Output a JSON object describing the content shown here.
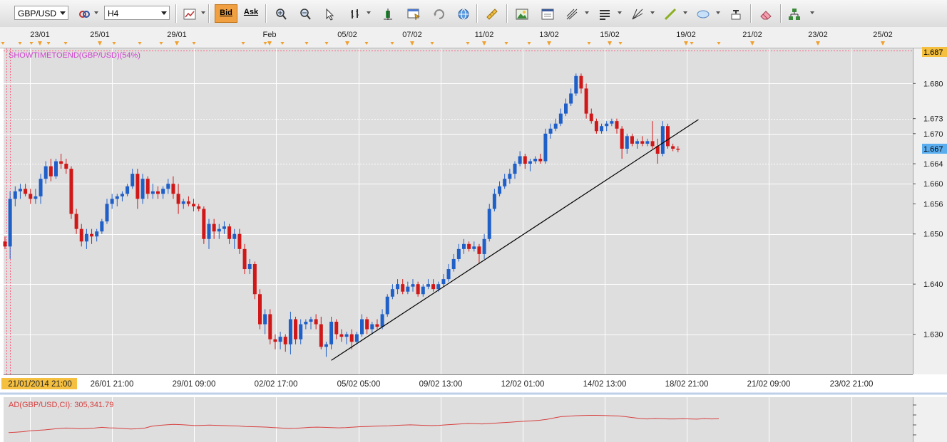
{
  "toolbar": {
    "symbol": "GBP/USD",
    "timeframe": "H4",
    "bid_label": "Bid",
    "ask_label": "Ask",
    "icons": [
      "symbol-link-icon",
      "line-chart-icon",
      "zoom-in-icon",
      "zoom-out-icon",
      "cursor-icon",
      "bar-chart-type-icon",
      "candle-settings-icon",
      "template-icon",
      "refresh-icon",
      "globe-icon",
      "ruler-icon",
      "picture-icon",
      "window-icon",
      "fork-icon",
      "lines-icon",
      "fan-icon",
      "trendline-icon",
      "ellipse-icon",
      "text-abc-icon",
      "eraser-icon",
      "network-icon"
    ]
  },
  "chart_data": {
    "type": "candlestick",
    "symbol": "GBP/USD",
    "timeframe": "H4",
    "indicator_label": "SHOWTIMETOEND(GBP/USD)(54%)",
    "price_axis": {
      "range": [
        1.622,
        1.687
      ],
      "ticks": [
        "1.680",
        "1.670",
        "1.660",
        "1.650",
        "1.640",
        "1.630"
      ],
      "current_price": "1.667",
      "top_price": "1.687",
      "level_labels": [
        "1.673",
        "1.664",
        "1.656"
      ],
      "levels": [
        1.673,
        1.664,
        1.656
      ]
    },
    "top_dates": [
      "23/01",
      "25/01",
      "29/01",
      "Feb",
      "05/02",
      "07/02",
      "11/02",
      "13/02",
      "15/02",
      "19/02",
      "21/02",
      "23/02",
      "25/02"
    ],
    "bottom_dates": [
      "21/01/2014 21:00",
      "26/01 21:00",
      "29/01 09:00",
      "02/02 17:00",
      "05/02 05:00",
      "09/02 13:00",
      "12/02 01:00",
      "14/02 13:00",
      "18/02 21:00",
      "21/02 09:00",
      "23/02 21:00"
    ],
    "candles": [
      [
        1.6485,
        1.6495,
        1.647,
        1.6475
      ],
      [
        1.6475,
        1.6585,
        1.645,
        1.657
      ],
      [
        1.657,
        1.6595,
        1.6555,
        1.6585
      ],
      [
        1.6585,
        1.66,
        1.657,
        1.659
      ],
      [
        1.659,
        1.66,
        1.6575,
        1.658
      ],
      [
        1.658,
        1.659,
        1.656,
        1.657
      ],
      [
        1.657,
        1.659,
        1.656,
        1.6575
      ],
      [
        1.6575,
        1.662,
        1.656,
        1.661
      ],
      [
        1.661,
        1.6645,
        1.66,
        1.6635
      ],
      [
        1.6635,
        1.665,
        1.6605,
        1.6615
      ],
      [
        1.6615,
        1.665,
        1.661,
        1.6645
      ],
      [
        1.6645,
        1.666,
        1.663,
        1.664
      ],
      [
        1.664,
        1.665,
        1.662,
        1.663
      ],
      [
        1.663,
        1.6635,
        1.653,
        1.654
      ],
      [
        1.654,
        1.655,
        1.65,
        1.651
      ],
      [
        1.651,
        1.652,
        1.6475,
        1.6485
      ],
      [
        1.6485,
        1.651,
        1.647,
        1.65
      ],
      [
        1.65,
        1.651,
        1.648,
        1.6495
      ],
      [
        1.6495,
        1.651,
        1.6485,
        1.6505
      ],
      [
        1.6505,
        1.653,
        1.65,
        1.6525
      ],
      [
        1.6525,
        1.657,
        1.652,
        1.656
      ],
      [
        1.656,
        1.658,
        1.655,
        1.657
      ],
      [
        1.657,
        1.658,
        1.6555,
        1.6575
      ],
      [
        1.6575,
        1.6585,
        1.6565,
        1.658
      ],
      [
        1.658,
        1.66,
        1.6575,
        1.6595
      ],
      [
        1.6595,
        1.663,
        1.659,
        1.662
      ],
      [
        1.662,
        1.663,
        1.655,
        1.657
      ],
      [
        1.657,
        1.662,
        1.656,
        1.661
      ],
      [
        1.661,
        1.6615,
        1.657,
        1.658
      ],
      [
        1.658,
        1.66,
        1.657,
        1.6585
      ],
      [
        1.6585,
        1.6595,
        1.657,
        1.658
      ],
      [
        1.658,
        1.6595,
        1.657,
        1.659
      ],
      [
        1.659,
        1.661,
        1.658,
        1.66
      ],
      [
        1.66,
        1.6615,
        1.657,
        1.658
      ],
      [
        1.658,
        1.66,
        1.654,
        1.656
      ],
      [
        1.656,
        1.657,
        1.655,
        1.6565
      ],
      [
        1.6565,
        1.6575,
        1.6555,
        1.656
      ],
      [
        1.656,
        1.657,
        1.6545,
        1.6555
      ],
      [
        1.6555,
        1.656,
        1.6545,
        1.655
      ],
      [
        1.655,
        1.6555,
        1.648,
        1.649
      ],
      [
        1.649,
        1.653,
        1.647,
        1.652
      ],
      [
        1.652,
        1.653,
        1.649,
        1.6505
      ],
      [
        1.6505,
        1.652,
        1.649,
        1.651
      ],
      [
        1.651,
        1.6525,
        1.65,
        1.6515
      ],
      [
        1.6515,
        1.652,
        1.648,
        1.649
      ],
      [
        1.649,
        1.651,
        1.647,
        1.65
      ],
      [
        1.65,
        1.651,
        1.646,
        1.647
      ],
      [
        1.647,
        1.648,
        1.642,
        1.643
      ],
      [
        1.643,
        1.645,
        1.642,
        1.644
      ],
      [
        1.644,
        1.6445,
        1.637,
        1.638
      ],
      [
        1.638,
        1.639,
        1.631,
        1.632
      ],
      [
        1.632,
        1.635,
        1.63,
        1.634
      ],
      [
        1.634,
        1.635,
        1.628,
        1.629
      ],
      [
        1.629,
        1.63,
        1.627,
        1.6285
      ],
      [
        1.6285,
        1.6305,
        1.627,
        1.6295
      ],
      [
        1.6295,
        1.63,
        1.6265,
        1.628
      ],
      [
        1.628,
        1.6345,
        1.626,
        1.633
      ],
      [
        1.633,
        1.6335,
        1.628,
        1.629
      ],
      [
        1.629,
        1.633,
        1.628,
        1.632
      ],
      [
        1.632,
        1.633,
        1.631,
        1.6325
      ],
      [
        1.6325,
        1.6335,
        1.631,
        1.633
      ],
      [
        1.633,
        1.634,
        1.631,
        1.632
      ],
      [
        1.632,
        1.6335,
        1.627,
        1.6275
      ],
      [
        1.6275,
        1.6285,
        1.6255,
        1.628
      ],
      [
        1.628,
        1.6335,
        1.627,
        1.6325
      ],
      [
        1.6325,
        1.633,
        1.629,
        1.63
      ],
      [
        1.63,
        1.631,
        1.6285,
        1.6295
      ],
      [
        1.6295,
        1.6305,
        1.628,
        1.63
      ],
      [
        1.63,
        1.631,
        1.627,
        1.6285
      ],
      [
        1.6285,
        1.6305,
        1.628,
        1.63
      ],
      [
        1.63,
        1.634,
        1.6295,
        1.633
      ],
      [
        1.633,
        1.6335,
        1.63,
        1.631
      ],
      [
        1.631,
        1.6325,
        1.63,
        1.632
      ],
      [
        1.632,
        1.633,
        1.631,
        1.6315
      ],
      [
        1.6315,
        1.635,
        1.631,
        1.634
      ],
      [
        1.634,
        1.638,
        1.6335,
        1.6375
      ],
      [
        1.6375,
        1.64,
        1.637,
        1.639
      ],
      [
        1.639,
        1.641,
        1.638,
        1.64
      ],
      [
        1.64,
        1.641,
        1.638,
        1.6385
      ],
      [
        1.6385,
        1.6405,
        1.638,
        1.6395
      ],
      [
        1.6395,
        1.641,
        1.6385,
        1.64
      ],
      [
        1.64,
        1.6405,
        1.6375,
        1.638
      ],
      [
        1.638,
        1.64,
        1.6375,
        1.6395
      ],
      [
        1.6395,
        1.641,
        1.639,
        1.64
      ],
      [
        1.64,
        1.641,
        1.6385,
        1.639
      ],
      [
        1.639,
        1.6405,
        1.6385,
        1.64
      ],
      [
        1.64,
        1.642,
        1.6395,
        1.641
      ],
      [
        1.641,
        1.644,
        1.6405,
        1.643
      ],
      [
        1.643,
        1.646,
        1.6425,
        1.645
      ],
      [
        1.645,
        1.648,
        1.6445,
        1.647
      ],
      [
        1.647,
        1.649,
        1.646,
        1.648
      ],
      [
        1.648,
        1.6485,
        1.6465,
        1.647
      ],
      [
        1.647,
        1.6485,
        1.6465,
        1.6475
      ],
      [
        1.6475,
        1.648,
        1.644,
        1.646
      ],
      [
        1.646,
        1.65,
        1.645,
        1.649
      ],
      [
        1.649,
        1.656,
        1.6485,
        1.655
      ],
      [
        1.655,
        1.659,
        1.6545,
        1.658
      ],
      [
        1.658,
        1.6605,
        1.6575,
        1.6595
      ],
      [
        1.6595,
        1.662,
        1.659,
        1.661
      ],
      [
        1.661,
        1.663,
        1.66,
        1.662
      ],
      [
        1.662,
        1.6645,
        1.661,
        1.664
      ],
      [
        1.664,
        1.6665,
        1.6635,
        1.6655
      ],
      [
        1.6655,
        1.666,
        1.663,
        1.664
      ],
      [
        1.664,
        1.665,
        1.6625,
        1.6645
      ],
      [
        1.6645,
        1.6655,
        1.664,
        1.665
      ],
      [
        1.665,
        1.666,
        1.664,
        1.6645
      ],
      [
        1.6645,
        1.671,
        1.664,
        1.67
      ],
      [
        1.67,
        1.672,
        1.669,
        1.671
      ],
      [
        1.671,
        1.673,
        1.6705,
        1.672
      ],
      [
        1.672,
        1.675,
        1.6715,
        1.674
      ],
      [
        1.674,
        1.677,
        1.6735,
        1.676
      ],
      [
        1.676,
        1.679,
        1.6755,
        1.678
      ],
      [
        1.678,
        1.682,
        1.6775,
        1.6815
      ],
      [
        1.6815,
        1.682,
        1.678,
        1.679
      ],
      [
        1.679,
        1.68,
        1.673,
        1.674
      ],
      [
        1.674,
        1.675,
        1.672,
        1.6725
      ],
      [
        1.6725,
        1.673,
        1.67,
        1.6705
      ],
      [
        1.6705,
        1.672,
        1.67,
        1.6715
      ],
      [
        1.6715,
        1.6725,
        1.6705,
        1.672
      ],
      [
        1.672,
        1.673,
        1.6715,
        1.6725
      ],
      [
        1.6725,
        1.673,
        1.67,
        1.671
      ],
      [
        1.671,
        1.6715,
        1.665,
        1.667
      ],
      [
        1.667,
        1.67,
        1.666,
        1.6695
      ],
      [
        1.6695,
        1.67,
        1.6675,
        1.668
      ],
      [
        1.668,
        1.669,
        1.667,
        1.6685
      ],
      [
        1.6685,
        1.6695,
        1.6675,
        1.668
      ],
      [
        1.668,
        1.669,
        1.6675,
        1.6685
      ],
      [
        1.6685,
        1.6725,
        1.667,
        1.6675
      ],
      [
        1.6675,
        1.669,
        1.664,
        1.666
      ],
      [
        1.666,
        1.6725,
        1.6655,
        1.6715
      ],
      [
        1.6715,
        1.672,
        1.667,
        1.6675
      ],
      [
        1.6675,
        1.668,
        1.6665,
        1.667
      ],
      [
        1.667,
        1.6675,
        1.6663,
        1.6668
      ]
    ],
    "trendline": {
      "from": {
        "index": 64,
        "price": 1.6248
      },
      "to": {
        "index": 136,
        "price": 1.6728
      }
    },
    "ad_indicator": {
      "label": "AD(GBP/USD,CI): 305,341.79",
      "values": [
        0.1,
        0.12,
        0.14,
        0.18,
        0.2,
        0.22,
        0.25,
        0.28,
        0.3,
        0.29,
        0.27,
        0.28,
        0.3,
        0.33,
        0.31,
        0.3,
        0.28,
        0.26,
        0.27,
        0.3,
        0.38,
        0.42,
        0.44,
        0.46,
        0.45,
        0.43,
        0.41,
        0.42,
        0.43,
        0.42,
        0.41,
        0.4,
        0.39,
        0.37,
        0.36,
        0.35,
        0.34,
        0.32,
        0.3,
        0.28,
        0.29,
        0.31,
        0.33,
        0.34,
        0.33,
        0.32,
        0.31,
        0.32,
        0.34,
        0.36,
        0.37,
        0.38,
        0.39,
        0.4,
        0.42,
        0.43,
        0.44,
        0.43,
        0.42,
        0.41,
        0.42,
        0.44,
        0.46,
        0.48,
        0.5,
        0.49,
        0.48,
        0.5,
        0.52,
        0.54,
        0.56,
        0.58,
        0.6,
        0.62,
        0.64,
        0.68,
        0.74,
        0.8,
        0.82,
        0.84,
        0.85,
        0.86,
        0.86,
        0.85,
        0.84,
        0.83,
        0.8,
        0.76,
        0.72,
        0.7,
        0.72,
        0.71,
        0.7,
        0.7,
        0.71,
        0.7,
        0.69,
        0.72,
        0.7,
        0.71
      ]
    },
    "colors": {
      "up": "#1f5fc8",
      "down": "#d01818",
      "plot_bg": "#dedede",
      "grid": "#ffffff",
      "axis_bg": "#f0f0f0",
      "current_price_bg": "#5aaef0",
      "top_price_bg": "#f5c040",
      "date_highlight_bg": "#f5c040",
      "indicator_text": "#d040d0",
      "ad_line": "#d84040",
      "marker": "#f0a030"
    }
  }
}
